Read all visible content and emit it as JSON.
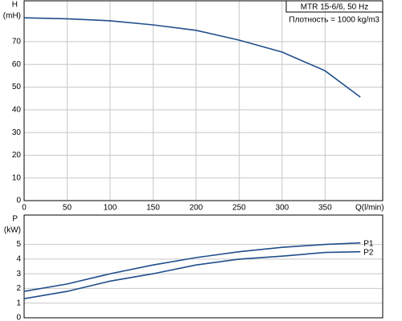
{
  "chart_data": [
    {
      "type": "line",
      "title": "MTR 15-6/6, 50 Hz",
      "subtitle": "Плотность = 1000 kg/m3",
      "ylabel": "H",
      "yunit": "(mH)",
      "xlabel": "Q(l/min)",
      "x": [
        0,
        50,
        100,
        150,
        200,
        250,
        300,
        350,
        391
      ],
      "values": [
        80.5,
        80.1,
        79.2,
        77.4,
        75.0,
        70.7,
        65.4,
        57.2,
        45.6
      ],
      "color": "#1f4e8c",
      "xlim": [
        0,
        417
      ],
      "xticks": [
        0,
        50,
        100,
        150,
        200,
        250,
        300,
        350
      ],
      "ylim": [
        0,
        88
      ],
      "yticks": [
        0,
        10,
        20,
        30,
        40,
        50,
        60,
        70
      ],
      "grid": true
    },
    {
      "type": "line",
      "ylabel": "P",
      "yunit": "(kW)",
      "x": [
        0,
        50,
        100,
        150,
        200,
        250,
        300,
        350,
        391
      ],
      "series": [
        {
          "name": "P1",
          "color": "#1f4e8c",
          "values": [
            1.8,
            2.3,
            3.0,
            3.6,
            4.1,
            4.5,
            4.8,
            5.0,
            5.1
          ]
        },
        {
          "name": "P2",
          "color": "#1f4e8c",
          "values": [
            1.3,
            1.8,
            2.5,
            3.0,
            3.6,
            4.0,
            4.2,
            4.45,
            4.5
          ]
        }
      ],
      "xlim": [
        0,
        417
      ],
      "ylim": [
        0,
        7
      ],
      "yticks": [
        0,
        1,
        2,
        3,
        4,
        5
      ],
      "grid": true
    }
  ]
}
